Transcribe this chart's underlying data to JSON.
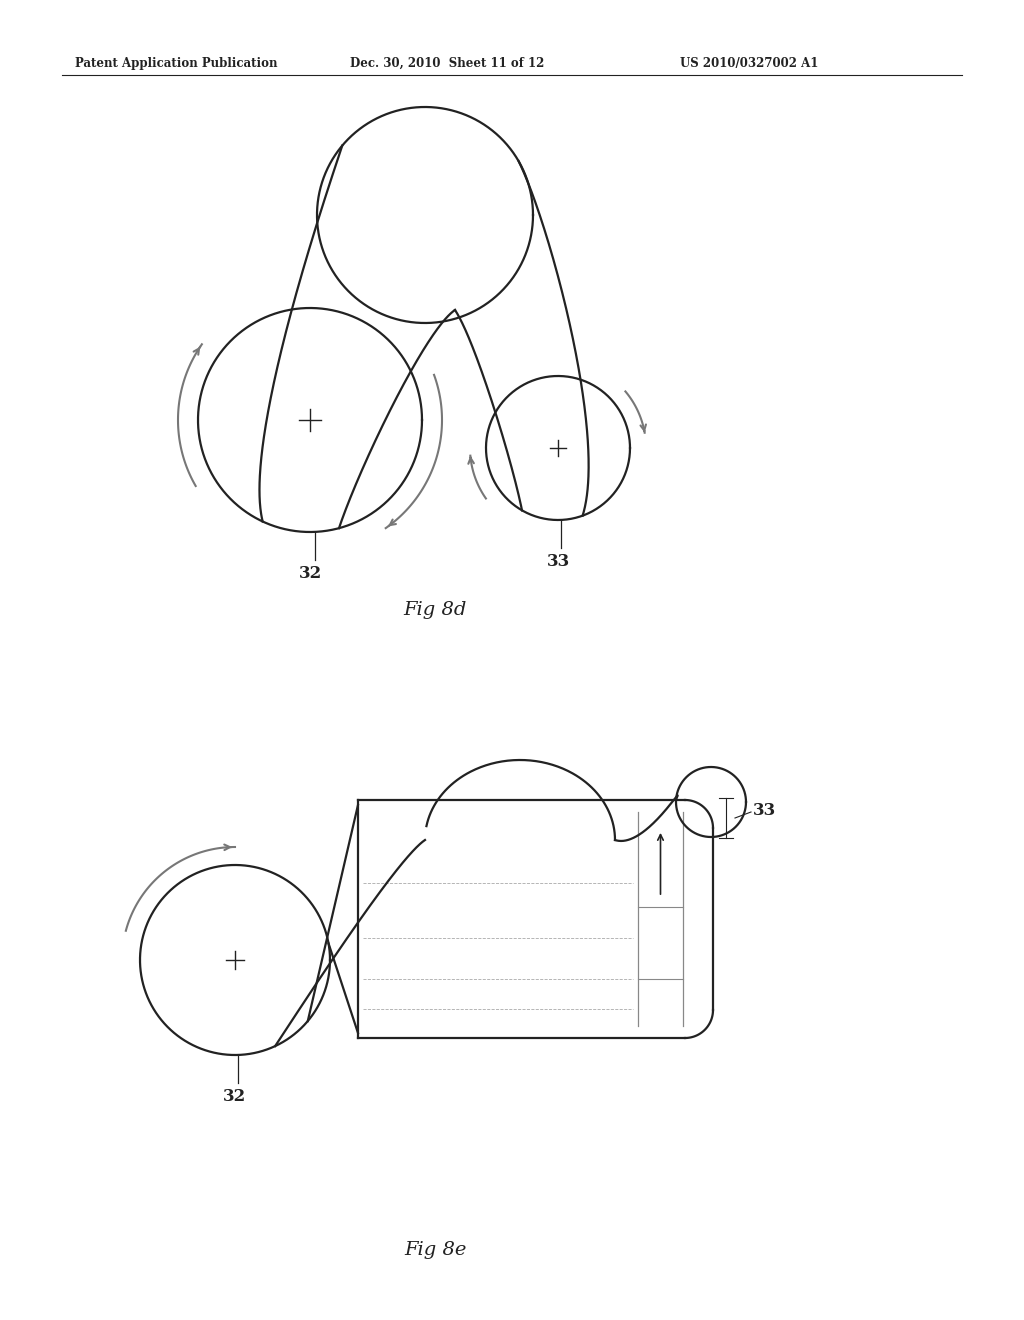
{
  "bg_color": "#ffffff",
  "header_left": "Patent Application Publication",
  "header_mid": "Dec. 30, 2010  Sheet 11 of 12",
  "header_right": "US 2010/0327002 A1",
  "fig8d_label": "Fig 8d",
  "fig8e_label": "Fig 8e",
  "label_32": "32",
  "label_33": "33",
  "line_color": "#222222",
  "arrow_color": "#777777"
}
